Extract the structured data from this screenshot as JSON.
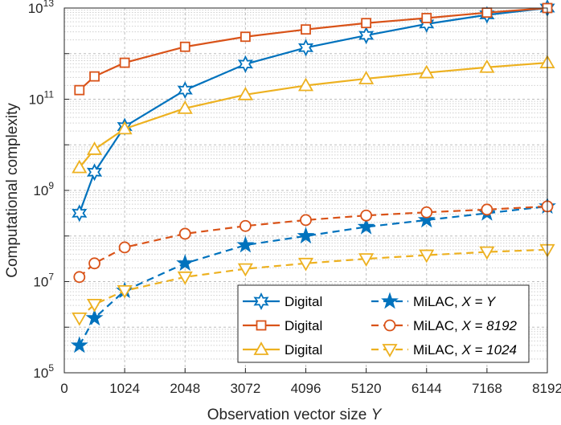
{
  "chart_data": {
    "type": "line",
    "yscale": "log",
    "xlabel": "Observation vector size",
    "xlabel_var": "Y",
    "ylabel": "Computational complexity",
    "xlim": [
      0,
      8192
    ],
    "ylim_exponents": [
      5,
      13
    ],
    "xticks": [
      0,
      1024,
      2048,
      3072,
      4096,
      5120,
      6144,
      7168,
      8192
    ],
    "xtick_labels": [
      "0",
      "1024",
      "2048",
      "3072",
      "4096",
      "5120",
      "6144",
      "7168",
      "8192"
    ],
    "ytick_base": "10",
    "ytick_exponents": [
      "5",
      "7",
      "9",
      "11",
      "13"
    ],
    "grid": true,
    "legend_position": "bottom-right",
    "series": [
      {
        "name": "Digital",
        "label": "Digital",
        "color": "#0072BD",
        "dash": "solid",
        "marker": "hexagram",
        "x": [
          256,
          512,
          1024,
          2048,
          3072,
          4096,
          5120,
          6144,
          7168,
          8192
        ],
        "log10y": [
          8.5,
          9.4,
          10.4,
          11.2,
          11.77,
          12.13,
          12.4,
          12.65,
          12.85,
          13.0
        ]
      },
      {
        "name": "Digital",
        "label": "Digital",
        "color": "#D95319",
        "dash": "solid",
        "marker": "square",
        "x": [
          256,
          512,
          1024,
          2048,
          3072,
          4096,
          5120,
          6144,
          7168,
          8192
        ],
        "log10y": [
          11.2,
          11.5,
          11.8,
          12.15,
          12.37,
          12.53,
          12.67,
          12.78,
          12.9,
          13.0
        ]
      },
      {
        "name": "Digital",
        "label": "Digital",
        "color": "#EDB120",
        "dash": "solid",
        "marker": "triangle-up",
        "x": [
          256,
          512,
          1024,
          2048,
          3072,
          4096,
          5120,
          6144,
          7168,
          8192
        ],
        "log10y": [
          9.5,
          9.9,
          10.35,
          10.8,
          11.1,
          11.3,
          11.45,
          11.58,
          11.7,
          11.8
        ]
      },
      {
        "name": "MiLAC, X = Y",
        "label_prefix": "MiLAC, ",
        "label_var": "X",
        "label_value": " = Y",
        "color": "#0072BD",
        "dash": "dashed",
        "marker": "pentagram",
        "x": [
          256,
          512,
          1024,
          2048,
          3072,
          4096,
          5120,
          6144,
          7168,
          8192
        ],
        "log10y": [
          5.6,
          6.2,
          6.8,
          7.4,
          7.8,
          8.0,
          8.2,
          8.35,
          8.5,
          8.65
        ]
      },
      {
        "name": "MiLAC, X = 8192",
        "label_prefix": "MiLAC, ",
        "label_var": "X",
        "label_value": " = 8192",
        "color": "#D95319",
        "dash": "dashed",
        "marker": "circle",
        "x": [
          256,
          512,
          1024,
          2048,
          3072,
          4096,
          5120,
          6144,
          7168,
          8192
        ],
        "log10y": [
          7.1,
          7.4,
          7.75,
          8.05,
          8.22,
          8.35,
          8.45,
          8.52,
          8.58,
          8.65
        ]
      },
      {
        "name": "MiLAC, X = 1024",
        "label_prefix": "MiLAC, ",
        "label_var": "X",
        "label_value": " = 1024",
        "color": "#EDB120",
        "dash": "dashed",
        "marker": "triangle-down",
        "x": [
          256,
          512,
          1024,
          2048,
          3072,
          4096,
          5120,
          6144,
          7168,
          8192
        ],
        "log10y": [
          6.2,
          6.5,
          6.8,
          7.1,
          7.28,
          7.4,
          7.5,
          7.58,
          7.65,
          7.7
        ]
      }
    ]
  }
}
